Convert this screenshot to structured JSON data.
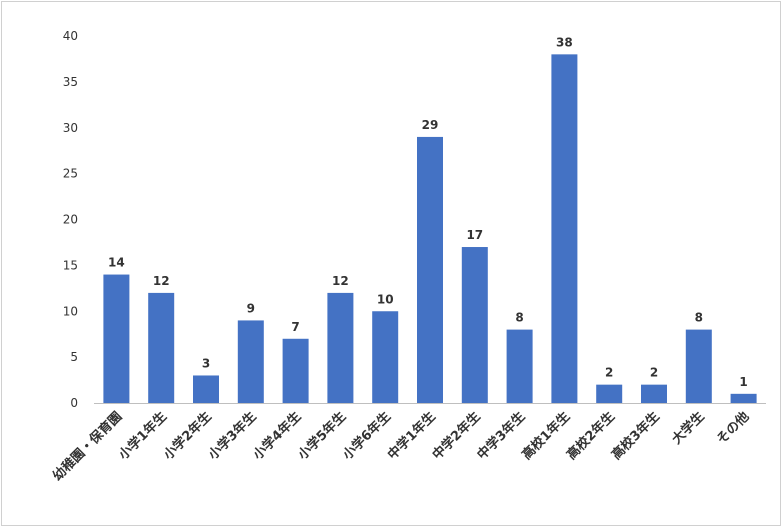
{
  "chart_data": {
    "type": "bar",
    "title": "",
    "xlabel": "",
    "ylabel": "",
    "categories": [
      "幼稚園・保育園",
      "小学1年生",
      "小学2年生",
      "小学3年生",
      "小学4年生",
      "小学5年生",
      "小学6年生",
      "中学1年生",
      "中学2年生",
      "中学3年生",
      "高校1年生",
      "高校2年生",
      "高校3年生",
      "大学生",
      "その他"
    ],
    "values": [
      14,
      12,
      3,
      9,
      7,
      12,
      10,
      29,
      17,
      8,
      38,
      2,
      2,
      8,
      1
    ],
    "ylim": [
      0,
      40
    ],
    "yticks": [
      0,
      5,
      10,
      15,
      20,
      25,
      30,
      35,
      40
    ],
    "grid": false,
    "bar_color": "#4472C4",
    "data_labels": true
  }
}
